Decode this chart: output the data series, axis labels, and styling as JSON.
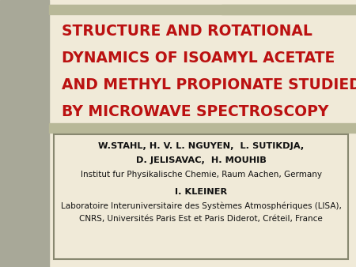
{
  "bg_color": "#f0ead8",
  "left_bar_color": "#a8a898",
  "top_bar_color": "#b8b898",
  "box_bg_color": "#f0ead8",
  "box_border_color": "#888870",
  "title_lines": [
    "STRUCTURE AND ROTATIONAL",
    "DYNAMICS OF ISOAMYL ACETATE",
    "AND METHYL PROPIONATE STUDIED",
    "BY MICROWAVE SPECTROSCOPY"
  ],
  "title_color": "#bb1111",
  "author_line1": "W.STAHL, H. V. L. NGUYEN,  L. SUTIKDJA,",
  "author_line2": "D. JELISAVAC,  H. MOUHIB",
  "author_line3": "Institut fur Physikalische Chemie, Raum Aachen, Germany",
  "author_line4": "I. KLEINER",
  "author_line5": "Laboratoire Interuniversitaire des Systèmes Atmosphériques (LISA),",
  "author_line6": "CNRS, Universités Paris Est et Paris Diderot, Créteil, France",
  "author_color": "#111111",
  "title_fontsize": 13.5,
  "author_bold_fontsize": 8.2,
  "author_reg_fontsize": 7.5
}
